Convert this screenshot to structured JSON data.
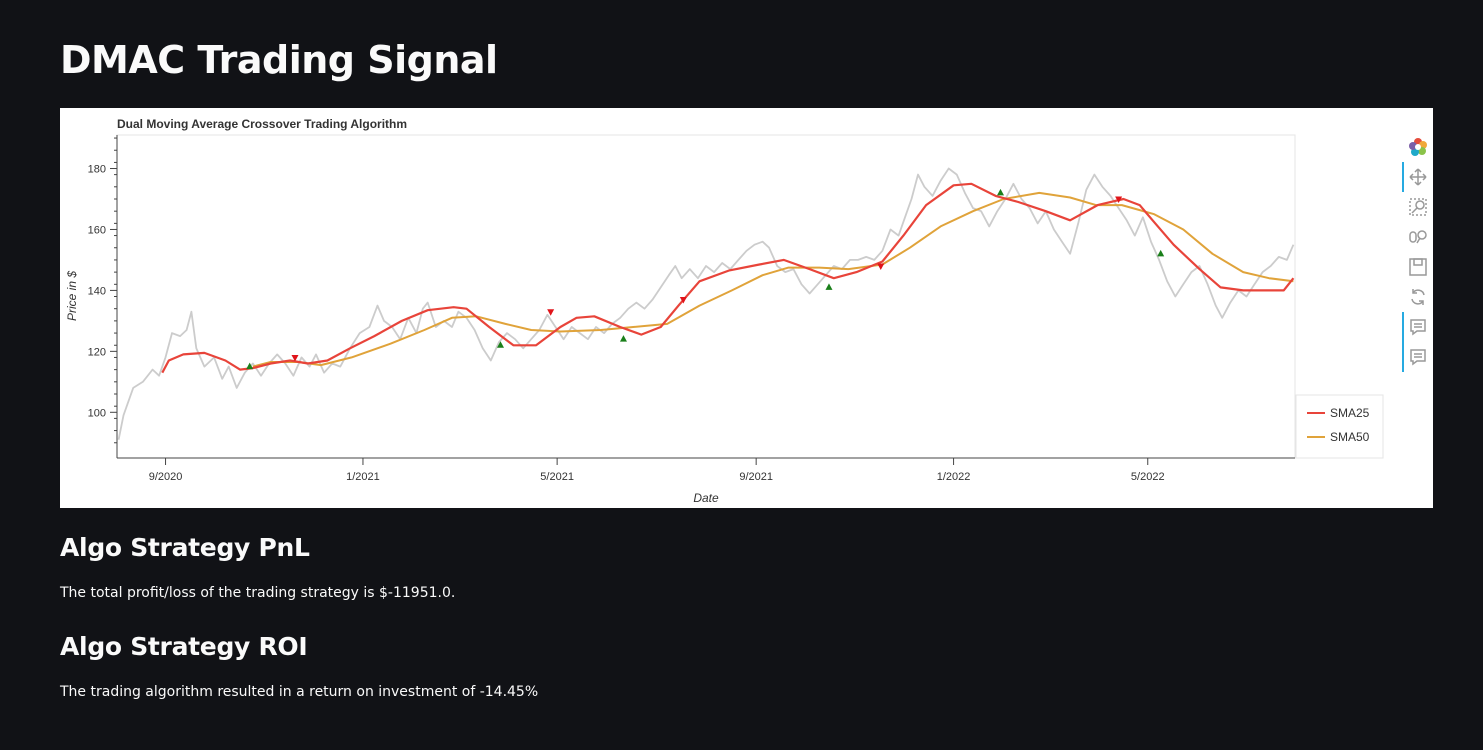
{
  "page": {
    "title": "DMAC Trading Signal"
  },
  "sections": {
    "pnl_heading": "Algo Strategy PnL",
    "pnl_text": "The total profit/loss of the trading strategy is $-11951.0.",
    "roi_heading": "Algo Strategy ROI",
    "roi_text": "The trading algorithm resulted in a return on investment of -14.45%"
  },
  "toolbar": {
    "tools": [
      {
        "name": "bokeh-logo",
        "icon": "bokeh-logo-icon",
        "active": false
      },
      {
        "name": "pan",
        "icon": "move-arrows-icon",
        "active": true
      },
      {
        "name": "box-zoom",
        "icon": "box-zoom-icon",
        "active": false
      },
      {
        "name": "wheel-zoom",
        "icon": "wheel-zoom-icon",
        "active": false
      },
      {
        "name": "save",
        "icon": "save-icon",
        "active": false
      },
      {
        "name": "reset",
        "icon": "reset-icon",
        "active": false
      },
      {
        "name": "hover-1",
        "icon": "hover-tooltip-icon",
        "active": true
      },
      {
        "name": "hover-2",
        "icon": "hover-tooltip-icon",
        "active": true
      }
    ]
  },
  "chart_data": {
    "type": "line",
    "title": "Dual Moving Average Crossover Trading Algorithm",
    "xlabel": "Date",
    "ylabel": "Price in $",
    "x_tick_labels": [
      "9/2020",
      "1/2021",
      "5/2021",
      "9/2021",
      "1/2022",
      "5/2022"
    ],
    "x_tick_dates": [
      "2020-09-01",
      "2021-01-01",
      "2021-05-01",
      "2021-09-01",
      "2022-01-01",
      "2022-05-01"
    ],
    "xlim": [
      "2020-08-02",
      "2022-07-31"
    ],
    "ylim": [
      85,
      191
    ],
    "y_ticks": [
      100,
      120,
      140,
      160,
      180
    ],
    "grid": false,
    "legend_position": "right",
    "colors": {
      "close": "#cccccc",
      "sma25": "#e8443a",
      "sma50": "#e0a33a",
      "buy": "#1a7f1a",
      "sell": "#e0141a"
    },
    "series": [
      {
        "name": "",
        "role": "close",
        "points": [
          [
            "2020-08-03",
            91
          ],
          [
            "2020-08-06",
            99
          ],
          [
            "2020-08-12",
            108
          ],
          [
            "2020-08-18",
            110
          ],
          [
            "2020-08-24",
            114
          ],
          [
            "2020-08-28",
            112
          ],
          [
            "2020-09-01",
            118
          ],
          [
            "2020-09-05",
            126
          ],
          [
            "2020-09-10",
            125
          ],
          [
            "2020-09-14",
            127
          ],
          [
            "2020-09-17",
            133
          ],
          [
            "2020-09-20",
            121
          ],
          [
            "2020-09-25",
            115
          ],
          [
            "2020-10-01",
            118
          ],
          [
            "2020-10-06",
            111
          ],
          [
            "2020-10-10",
            115
          ],
          [
            "2020-10-15",
            108
          ],
          [
            "2020-10-20",
            113
          ],
          [
            "2020-10-25",
            116
          ],
          [
            "2020-10-30",
            112
          ],
          [
            "2020-11-04",
            116
          ],
          [
            "2020-11-09",
            119
          ],
          [
            "2020-11-14",
            116
          ],
          [
            "2020-11-19",
            112
          ],
          [
            "2020-11-24",
            118
          ],
          [
            "2020-11-29",
            115
          ],
          [
            "2020-12-03",
            119
          ],
          [
            "2020-12-08",
            113
          ],
          [
            "2020-12-13",
            116
          ],
          [
            "2020-12-18",
            115
          ],
          [
            "2020-12-24",
            121
          ],
          [
            "2020-12-30",
            126
          ],
          [
            "2021-01-05",
            128
          ],
          [
            "2021-01-10",
            135
          ],
          [
            "2021-01-14",
            130
          ],
          [
            "2021-01-19",
            128
          ],
          [
            "2021-01-24",
            124
          ],
          [
            "2021-01-29",
            131
          ],
          [
            "2021-02-03",
            126
          ],
          [
            "2021-02-07",
            134
          ],
          [
            "2021-02-10",
            136
          ],
          [
            "2021-02-15",
            128
          ],
          [
            "2021-02-20",
            130
          ],
          [
            "2021-02-25",
            128
          ],
          [
            "2021-03-01",
            133
          ],
          [
            "2021-03-06",
            131
          ],
          [
            "2021-03-11",
            127
          ],
          [
            "2021-03-16",
            121
          ],
          [
            "2021-03-21",
            117
          ],
          [
            "2021-03-26",
            123
          ],
          [
            "2021-03-31",
            126
          ],
          [
            "2021-04-05",
            124
          ],
          [
            "2021-04-10",
            121
          ],
          [
            "2021-04-15",
            124
          ],
          [
            "2021-04-20",
            127
          ],
          [
            "2021-04-25",
            132
          ],
          [
            "2021-04-30",
            128
          ],
          [
            "2021-05-05",
            124
          ],
          [
            "2021-05-10",
            128
          ],
          [
            "2021-05-15",
            126
          ],
          [
            "2021-05-20",
            124
          ],
          [
            "2021-05-25",
            128
          ],
          [
            "2021-05-30",
            126
          ],
          [
            "2021-06-04",
            129
          ],
          [
            "2021-06-09",
            131
          ],
          [
            "2021-06-14",
            134
          ],
          [
            "2021-06-19",
            136
          ],
          [
            "2021-06-24",
            134
          ],
          [
            "2021-06-29",
            137
          ],
          [
            "2021-07-04",
            141
          ],
          [
            "2021-07-09",
            145
          ],
          [
            "2021-07-13",
            148
          ],
          [
            "2021-07-17",
            144
          ],
          [
            "2021-07-22",
            147
          ],
          [
            "2021-07-27",
            144
          ],
          [
            "2021-08-01",
            148
          ],
          [
            "2021-08-06",
            146
          ],
          [
            "2021-08-11",
            149
          ],
          [
            "2021-08-16",
            147
          ],
          [
            "2021-08-21",
            150
          ],
          [
            "2021-08-26",
            153
          ],
          [
            "2021-08-31",
            155
          ],
          [
            "2021-09-05",
            156
          ],
          [
            "2021-09-09",
            154
          ],
          [
            "2021-09-14",
            148
          ],
          [
            "2021-09-19",
            146
          ],
          [
            "2021-09-24",
            147
          ],
          [
            "2021-09-29",
            142
          ],
          [
            "2021-10-04",
            139
          ],
          [
            "2021-10-09",
            142
          ],
          [
            "2021-10-14",
            145
          ],
          [
            "2021-10-19",
            148
          ],
          [
            "2021-10-24",
            147
          ],
          [
            "2021-10-29",
            150
          ],
          [
            "2021-11-03",
            150
          ],
          [
            "2021-11-08",
            151
          ],
          [
            "2021-11-13",
            150
          ],
          [
            "2021-11-18",
            153
          ],
          [
            "2021-11-23",
            160
          ],
          [
            "2021-11-28",
            158
          ],
          [
            "2021-12-02",
            164
          ],
          [
            "2021-12-06",
            170
          ],
          [
            "2021-12-10",
            178
          ],
          [
            "2021-12-14",
            174
          ],
          [
            "2021-12-19",
            171
          ],
          [
            "2021-12-24",
            176
          ],
          [
            "2021-12-29",
            180
          ],
          [
            "2022-01-03",
            178
          ],
          [
            "2022-01-08",
            172
          ],
          [
            "2022-01-13",
            167
          ],
          [
            "2022-01-18",
            166
          ],
          [
            "2022-01-23",
            161
          ],
          [
            "2022-01-28",
            166
          ],
          [
            "2022-02-02",
            170
          ],
          [
            "2022-02-07",
            175
          ],
          [
            "2022-02-12",
            170
          ],
          [
            "2022-02-17",
            167
          ],
          [
            "2022-02-22",
            162
          ],
          [
            "2022-02-27",
            166
          ],
          [
            "2022-03-04",
            160
          ],
          [
            "2022-03-09",
            156
          ],
          [
            "2022-03-14",
            152
          ],
          [
            "2022-03-19",
            162
          ],
          [
            "2022-03-24",
            173
          ],
          [
            "2022-03-29",
            178
          ],
          [
            "2022-04-03",
            174
          ],
          [
            "2022-04-08",
            171
          ],
          [
            "2022-04-13",
            167
          ],
          [
            "2022-04-18",
            163
          ],
          [
            "2022-04-23",
            158
          ],
          [
            "2022-04-28",
            164
          ],
          [
            "2022-05-03",
            156
          ],
          [
            "2022-05-08",
            150
          ],
          [
            "2022-05-13",
            143
          ],
          [
            "2022-05-18",
            138
          ],
          [
            "2022-05-23",
            142
          ],
          [
            "2022-05-28",
            146
          ],
          [
            "2022-06-02",
            148
          ],
          [
            "2022-06-07",
            142
          ],
          [
            "2022-06-12",
            135
          ],
          [
            "2022-06-16",
            131
          ],
          [
            "2022-06-21",
            136
          ],
          [
            "2022-06-26",
            140
          ],
          [
            "2022-07-01",
            138
          ],
          [
            "2022-07-06",
            142
          ],
          [
            "2022-07-11",
            146
          ],
          [
            "2022-07-16",
            148
          ],
          [
            "2022-07-21",
            151
          ],
          [
            "2022-07-26",
            150
          ],
          [
            "2022-07-30",
            155
          ]
        ]
      },
      {
        "name": "SMA25",
        "role": "sma25",
        "points": [
          [
            "2020-08-30",
            113
          ],
          [
            "2020-09-03",
            117
          ],
          [
            "2020-09-12",
            119
          ],
          [
            "2020-09-25",
            119.5
          ],
          [
            "2020-10-08",
            117
          ],
          [
            "2020-10-17",
            114
          ],
          [
            "2020-10-25",
            114.5
          ],
          [
            "2020-11-05",
            116
          ],
          [
            "2020-11-17",
            117
          ],
          [
            "2020-11-28",
            116
          ],
          [
            "2020-12-10",
            117
          ],
          [
            "2020-12-24",
            121
          ],
          [
            "2021-01-08",
            125
          ],
          [
            "2021-01-25",
            130
          ],
          [
            "2021-02-10",
            133.5
          ],
          [
            "2021-02-26",
            134.5
          ],
          [
            "2021-03-06",
            134
          ],
          [
            "2021-03-20",
            128
          ],
          [
            "2021-04-04",
            122
          ],
          [
            "2021-04-18",
            122
          ],
          [
            "2021-05-03",
            128
          ],
          [
            "2021-05-13",
            131
          ],
          [
            "2021-05-24",
            131.5
          ],
          [
            "2021-06-09",
            128
          ],
          [
            "2021-06-22",
            125.5
          ],
          [
            "2021-07-04",
            128
          ],
          [
            "2021-07-15",
            135
          ],
          [
            "2021-07-28",
            143
          ],
          [
            "2021-08-15",
            146.5
          ],
          [
            "2021-09-03",
            148.5
          ],
          [
            "2021-09-18",
            150
          ],
          [
            "2021-10-04",
            147
          ],
          [
            "2021-10-19",
            144
          ],
          [
            "2021-11-02",
            146
          ],
          [
            "2021-11-18",
            149.5
          ],
          [
            "2021-12-01",
            158
          ],
          [
            "2021-12-15",
            168
          ],
          [
            "2022-01-01",
            174.5
          ],
          [
            "2022-01-12",
            175
          ],
          [
            "2022-01-27",
            171
          ],
          [
            "2022-02-10",
            169
          ],
          [
            "2022-02-27",
            166
          ],
          [
            "2022-03-14",
            163
          ],
          [
            "2022-03-31",
            168
          ],
          [
            "2022-04-16",
            170
          ],
          [
            "2022-04-26",
            168
          ],
          [
            "2022-05-04",
            163
          ],
          [
            "2022-05-17",
            155
          ],
          [
            "2022-06-02",
            147
          ],
          [
            "2022-06-15",
            141
          ],
          [
            "2022-06-29",
            140
          ],
          [
            "2022-07-15",
            140
          ],
          [
            "2022-07-24",
            140
          ],
          [
            "2022-07-30",
            144
          ]
        ]
      },
      {
        "name": "SMA50",
        "role": "sma50",
        "points": [
          [
            "2020-10-25",
            115
          ],
          [
            "2020-11-05",
            116.5
          ],
          [
            "2020-11-22",
            116.5
          ],
          [
            "2020-12-06",
            115.5
          ],
          [
            "2020-12-25",
            118
          ],
          [
            "2021-01-18",
            122.5
          ],
          [
            "2021-02-08",
            127
          ],
          [
            "2021-02-25",
            131
          ],
          [
            "2021-03-12",
            131.5
          ],
          [
            "2021-03-30",
            129
          ],
          [
            "2021-04-15",
            127
          ],
          [
            "2021-05-03",
            126.5
          ],
          [
            "2021-05-28",
            127
          ],
          [
            "2021-06-17",
            128
          ],
          [
            "2021-07-08",
            129
          ],
          [
            "2021-07-28",
            135
          ],
          [
            "2021-08-17",
            140
          ],
          [
            "2021-09-05",
            145
          ],
          [
            "2021-09-21",
            147.5
          ],
          [
            "2021-10-10",
            147.5
          ],
          [
            "2021-10-28",
            147
          ],
          [
            "2021-11-18",
            148.5
          ],
          [
            "2021-12-05",
            154
          ],
          [
            "2021-12-24",
            161
          ],
          [
            "2022-01-13",
            166
          ],
          [
            "2022-02-01",
            170
          ],
          [
            "2022-02-23",
            172
          ],
          [
            "2022-03-14",
            170.5
          ],
          [
            "2022-03-30",
            168
          ],
          [
            "2022-04-15",
            168
          ],
          [
            "2022-05-05",
            165
          ],
          [
            "2022-05-23",
            160
          ],
          [
            "2022-06-10",
            152
          ],
          [
            "2022-06-29",
            146
          ],
          [
            "2022-07-15",
            144
          ],
          [
            "2022-07-30",
            143
          ]
        ]
      }
    ],
    "signals": {
      "buy": [
        [
          "2020-10-23",
          115
        ],
        [
          "2021-03-27",
          122
        ],
        [
          "2021-06-11",
          124
        ],
        [
          "2021-10-16",
          141
        ],
        [
          "2022-01-30",
          172
        ],
        [
          "2022-05-09",
          152
        ]
      ],
      "sell": [
        [
          "2020-11-20",
          118
        ],
        [
          "2021-04-27",
          133
        ],
        [
          "2021-07-18",
          137
        ],
        [
          "2021-11-17",
          148
        ],
        [
          "2022-04-13",
          170
        ]
      ]
    }
  }
}
